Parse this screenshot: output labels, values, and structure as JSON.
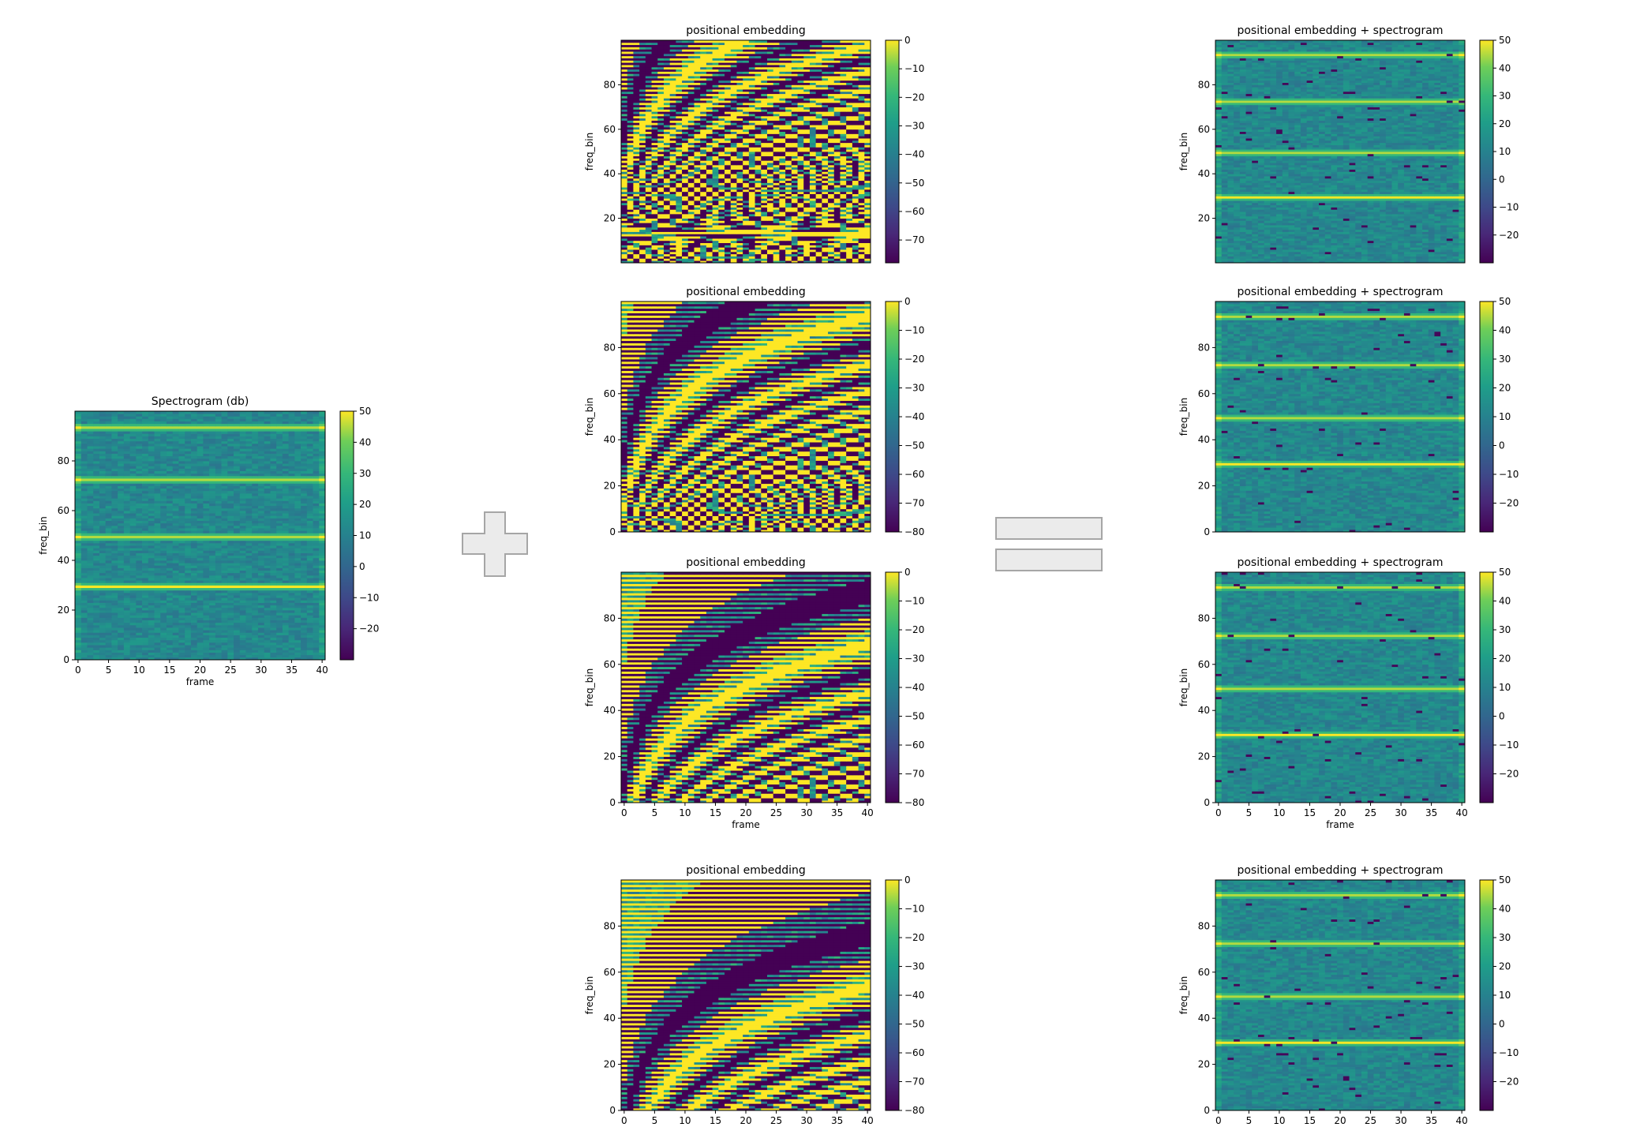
{
  "spectrogram": {
    "title": "Spectrogram (db)",
    "xlabel": "frame",
    "ylabel": "freq_bin",
    "xticks": [
      "0",
      "5",
      "10",
      "15",
      "20",
      "25",
      "30",
      "35",
      "40"
    ],
    "yticks": [
      "0",
      "20",
      "40",
      "60",
      "80"
    ],
    "cbar_ticks": [
      "50",
      "40",
      "30",
      "20",
      "10",
      "0",
      "−10",
      "−20"
    ]
  },
  "operators": {
    "plus": "plus-sign",
    "equals": "equals-sign"
  },
  "embeddings": [
    {
      "title": "positional embedding",
      "ylabel": "freq_bin",
      "xlabel": "",
      "variant": 0,
      "yticks": [
        "20",
        "40",
        "60",
        "80"
      ],
      "xticks": [],
      "cbar_ticks": [
        "0",
        "−10",
        "−20",
        "−30",
        "−40",
        "−50",
        "−60",
        "−70"
      ]
    },
    {
      "title": "positional embedding",
      "ylabel": "freq_bin",
      "xlabel": "",
      "variant": 1,
      "yticks": [
        "0",
        "20",
        "40",
        "60",
        "80"
      ],
      "xticks": [],
      "cbar_ticks": [
        "0",
        "−10",
        "−20",
        "−30",
        "−40",
        "−50",
        "−60",
        "−70",
        "−80"
      ]
    },
    {
      "title": "positional embedding",
      "ylabel": "freq_bin",
      "xlabel": "frame",
      "variant": 2,
      "yticks": [
        "0",
        "20",
        "40",
        "60",
        "80"
      ],
      "xticks": [
        "0",
        "5",
        "10",
        "15",
        "20",
        "25",
        "30",
        "35",
        "40"
      ],
      "cbar_ticks": [
        "0",
        "−10",
        "−20",
        "−30",
        "−40",
        "−50",
        "−60",
        "−70",
        "−80"
      ]
    },
    {
      "title": "positional embedding",
      "ylabel": "freq_bin",
      "xlabel": "frame",
      "variant": 3,
      "yticks": [
        "0",
        "20",
        "40",
        "60",
        "80"
      ],
      "xticks": [
        "0",
        "5",
        "10",
        "15",
        "20",
        "25",
        "30",
        "35",
        "40"
      ],
      "cbar_ticks": [
        "0",
        "−10",
        "−20",
        "−30",
        "−40",
        "−50",
        "−60",
        "−70",
        "−80"
      ]
    }
  ],
  "sums": [
    {
      "title": "positional embedding + spectrogram",
      "ylabel": "freq_bin",
      "xlabel": "",
      "yticks": [
        "20",
        "40",
        "60",
        "80"
      ],
      "xticks": [],
      "cbar_ticks": [
        "50",
        "40",
        "30",
        "20",
        "10",
        "0",
        "−10",
        "−20"
      ]
    },
    {
      "title": "positional embedding + spectrogram",
      "ylabel": "freq_bin",
      "xlabel": "",
      "yticks": [
        "0",
        "20",
        "40",
        "60",
        "80"
      ],
      "xticks": [],
      "cbar_ticks": [
        "50",
        "40",
        "30",
        "20",
        "10",
        "0",
        "−10",
        "−20"
      ]
    },
    {
      "title": "positional embedding + spectrogram",
      "ylabel": "freq_bin",
      "xlabel": "frame",
      "yticks": [
        "0",
        "20",
        "40",
        "60",
        "80"
      ],
      "xticks": [
        "0",
        "5",
        "10",
        "15",
        "20",
        "25",
        "30",
        "35",
        "40"
      ],
      "cbar_ticks": [
        "50",
        "40",
        "30",
        "20",
        "10",
        "0",
        "−10",
        "−20"
      ]
    },
    {
      "title": "positional embedding + spectrogram",
      "ylabel": "freq_bin",
      "xlabel": "frame",
      "yticks": [
        "0",
        "20",
        "40",
        "60",
        "80"
      ],
      "xticks": [
        "0",
        "5",
        "10",
        "15",
        "20",
        "25",
        "30",
        "35",
        "40"
      ],
      "cbar_ticks": [
        "50",
        "40",
        "30",
        "20",
        "10",
        "0",
        "−10",
        "−20"
      ]
    }
  ],
  "chart_data": [
    {
      "type": "heatmap",
      "title": "Spectrogram (db)",
      "xlabel": "frame",
      "ylabel": "freq_bin",
      "xlim": [
        0,
        40
      ],
      "ylim": [
        0,
        100
      ],
      "colorbar_range": [
        -30,
        50
      ],
      "colormap": "viridis",
      "bright_rows": [
        29,
        49,
        72,
        93
      ],
      "bright_row_value": 45,
      "background_value": 12
    },
    {
      "type": "heatmap",
      "title": "positional embedding",
      "ylabel": "freq_bin",
      "xlim": [
        0,
        40
      ],
      "ylim": [
        0,
        100
      ],
      "colorbar_range": [
        -78,
        0
      ],
      "colormap": "viridis"
    },
    {
      "type": "heatmap",
      "title": "positional embedding",
      "ylabel": "freq_bin",
      "xlim": [
        0,
        40
      ],
      "ylim": [
        0,
        100
      ],
      "colorbar_range": [
        -80,
        0
      ],
      "colormap": "viridis"
    },
    {
      "type": "heatmap",
      "title": "positional embedding",
      "xlabel": "frame",
      "ylabel": "freq_bin",
      "xlim": [
        0,
        40
      ],
      "ylim": [
        0,
        100
      ],
      "colorbar_range": [
        -80,
        0
      ],
      "colormap": "viridis"
    },
    {
      "type": "heatmap",
      "title": "positional embedding",
      "xlabel": "frame",
      "ylabel": "freq_bin",
      "xlim": [
        0,
        40
      ],
      "ylim": [
        0,
        100
      ],
      "colorbar_range": [
        -80,
        0
      ],
      "colormap": "viridis"
    },
    {
      "type": "heatmap",
      "title": "positional embedding + spectrogram",
      "ylabel": "freq_bin",
      "xlim": [
        0,
        40
      ],
      "ylim": [
        0,
        100
      ],
      "colorbar_range": [
        -30,
        50
      ],
      "colormap": "viridis"
    },
    {
      "type": "heatmap",
      "title": "positional embedding + spectrogram",
      "ylabel": "freq_bin",
      "xlim": [
        0,
        40
      ],
      "ylim": [
        0,
        100
      ],
      "colorbar_range": [
        -30,
        50
      ],
      "colormap": "viridis"
    },
    {
      "type": "heatmap",
      "title": "positional embedding + spectrogram",
      "xlabel": "frame",
      "ylabel": "freq_bin",
      "xlim": [
        0,
        40
      ],
      "ylim": [
        0,
        100
      ],
      "colorbar_range": [
        -30,
        50
      ],
      "colormap": "viridis"
    },
    {
      "type": "heatmap",
      "title": "positional embedding + spectrogram",
      "xlabel": "frame",
      "ylabel": "freq_bin",
      "xlim": [
        0,
        40
      ],
      "ylim": [
        0,
        100
      ],
      "colorbar_range": [
        -30,
        50
      ],
      "colormap": "viridis"
    }
  ]
}
